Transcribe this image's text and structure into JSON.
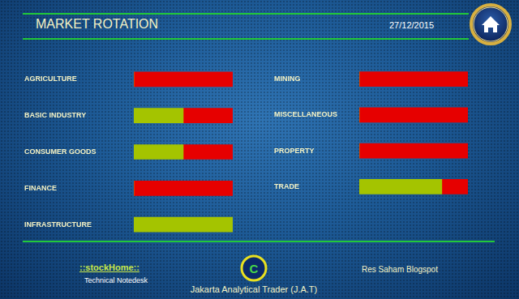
{
  "header": {
    "title": "MARKET ROTATION",
    "date": "27/12/2015"
  },
  "chart_data": [
    {
      "type": "bar",
      "orientation": "horizontal",
      "stacked": true,
      "categories": [
        "AGRICULTURE",
        "BASIC INDUSTRY",
        "CONSUMER GOODS",
        "FINANCE",
        "INFRASTRUCTURE"
      ],
      "series": [
        {
          "color": "#a4c400",
          "values": [
            0,
            50,
            50,
            0,
            100
          ]
        },
        {
          "color": "#e60000",
          "values": [
            100,
            50,
            50,
            100,
            0
          ]
        }
      ],
      "xlim": [
        0,
        100
      ],
      "xticks": [
        0,
        100
      ],
      "grid": false,
      "tick_labels": "y"
    },
    {
      "type": "bar",
      "orientation": "horizontal",
      "stacked": true,
      "categories": [
        "MINING",
        "MISCELLANEOUS",
        "PROPERTY",
        "TRADE"
      ],
      "series": [
        {
          "color": "#a4c400",
          "values": [
            0,
            0,
            0,
            76
          ]
        },
        {
          "color": "#e60000",
          "values": [
            100,
            100,
            100,
            24
          ]
        }
      ],
      "xlim": [
        0,
        100
      ],
      "xticks": [
        0,
        100
      ],
      "grid": false,
      "tick_labels": "y"
    }
  ],
  "footer": {
    "left_title": "::stockHome::",
    "left_subtitle": "Technical Notedesk",
    "badge": "C",
    "center": "Jakarta Analytical Trader (J.A.T)",
    "right": "Res Saham Blogspot"
  }
}
